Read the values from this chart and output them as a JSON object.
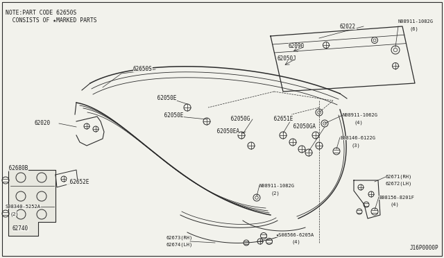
{
  "bg_color": "#f2f2ec",
  "line_color": "#2a2a2a",
  "text_color": "#1a1a1a",
  "note_line1": "NOTE:PART CODE 62650S",
  "note_line2": "  CONSISTS OF *MARKED PARTS",
  "diagram_code": "J16P0000P",
  "figsize": [
    6.4,
    3.72
  ],
  "dpi": 100
}
